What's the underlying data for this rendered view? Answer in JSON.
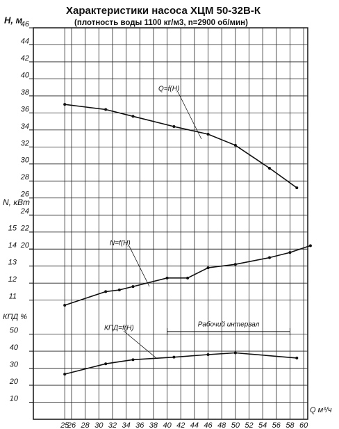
{
  "chart_data": {
    "type": "line",
    "title": "Характеристики насоса ХЦМ 50-32В-К",
    "subtitle": "(плотность воды 1100 кг/м3, n=2900 об/мин)",
    "x_label": "Q м³/ч",
    "y_label": "H, м",
    "y2_label": "N, кВт",
    "y3_label": "КПД %",
    "xlim": [
      20.4,
      60.6
    ],
    "xticks": [
      25,
      26,
      28,
      30,
      32,
      34,
      36,
      38,
      40,
      42,
      44,
      46,
      48,
      50,
      52,
      54,
      56,
      58,
      60
    ],
    "ylim": [
      0,
      46
    ],
    "yticks": [
      20,
      22,
      24,
      26,
      28,
      30,
      32,
      34,
      36,
      38,
      40,
      42,
      44,
      46
    ],
    "y2lim": [
      4,
      27
    ],
    "y2ticks": [
      11,
      12,
      13,
      14,
      15
    ],
    "y3lim": [
      0,
      230
    ],
    "y3ticks": [
      10,
      20,
      30,
      40,
      50
    ],
    "grid": true,
    "series": [
      {
        "name": "Q=f(H)",
        "color": "#111111",
        "axis": "y",
        "x": [
          25,
          31,
          35,
          41,
          46,
          50,
          55,
          59
        ],
        "values": [
          37,
          36.4,
          35.6,
          34.4,
          33.5,
          32.2,
          29.5,
          27.2
        ]
      },
      {
        "name": "N=f(H)",
        "color": "#111111",
        "axis": "y2",
        "x": [
          25,
          31,
          33,
          35,
          40,
          43,
          46,
          50,
          55,
          58,
          61
        ],
        "values": [
          10.7,
          11.5,
          11.6,
          11.8,
          12.3,
          12.3,
          12.9,
          13.1,
          13.5,
          13.8,
          14.2
        ]
      },
      {
        "name": "КПД=f(H)",
        "color": "#111111",
        "axis": "y3",
        "x": [
          25,
          31,
          35,
          41,
          46,
          50,
          59
        ],
        "values": [
          26.5,
          32.6,
          35,
          36.5,
          38,
          39,
          36
        ]
      }
    ],
    "annotation": {
      "text": "Рабочий интервал",
      "x": [
        40,
        58
      ],
      "value": 51.5
    }
  }
}
